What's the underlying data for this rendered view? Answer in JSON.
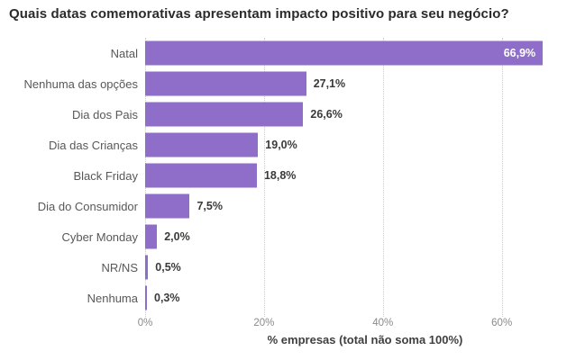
{
  "chart_data": {
    "type": "bar",
    "orientation": "horizontal",
    "title": "Quais datas comemorativas apresentam impacto positivo para seu negócio?",
    "categories": [
      "Natal",
      "Nenhuma das opções",
      "Dia dos Pais",
      "Dia das Crianças",
      "Black Friday",
      "Dia do Consumidor",
      "Cyber Monday",
      "NR/NS",
      "Nenhuma"
    ],
    "values": [
      66.9,
      27.1,
      26.6,
      19.0,
      18.8,
      7.5,
      2.0,
      0.5,
      0.3
    ],
    "value_labels": [
      "66,9%",
      "27,1%",
      "26,6%",
      "19,0%",
      "18,8%",
      "7,5%",
      "2,0%",
      "0,5%",
      "0,3%"
    ],
    "xlabel": "% empresas (total não soma 100%)",
    "ylabel": "",
    "x_tick_labels": [
      "0%",
      "20%",
      "40%",
      "60%"
    ],
    "x_tick_values": [
      0,
      20,
      40,
      60
    ],
    "xlim": [
      0,
      74
    ],
    "grid": "dotted-vertical",
    "legend": "none",
    "inside_label_min_value": 60
  },
  "colors": {
    "background": "#ffffff",
    "bar": "#8f6ec9",
    "title_text": "#2b2b2b",
    "category_text": "#5a5856",
    "value_text": "#3a3a3a",
    "value_text_inside": "#ffffff",
    "tick_text": "#8c8a88",
    "axis_label_text": "#3f3f3f",
    "gridline": "#cccccc"
  }
}
